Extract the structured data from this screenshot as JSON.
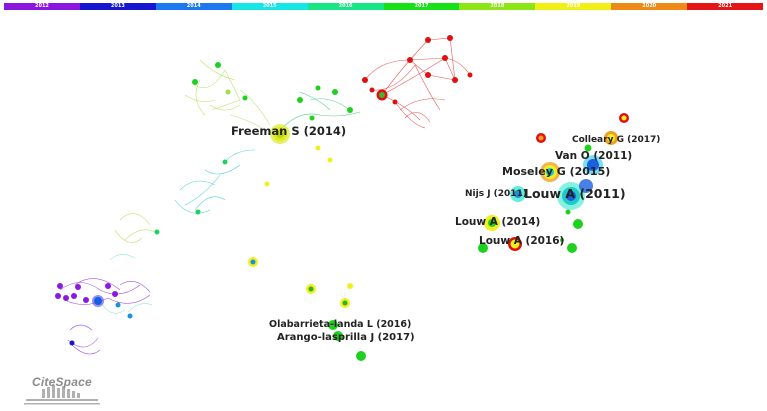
{
  "timeline": {
    "slices": [
      {
        "year": "2012",
        "color": "#8a16e0"
      },
      {
        "year": "2013",
        "color": "#1616d2"
      },
      {
        "year": "2014",
        "color": "#1a78f0"
      },
      {
        "year": "2015",
        "color": "#16e6e6"
      },
      {
        "year": "2016",
        "color": "#16e684"
      },
      {
        "year": "2017",
        "color": "#16e016"
      },
      {
        "year": "2018",
        "color": "#8ce616"
      },
      {
        "year": "2019",
        "color": "#f0f016"
      },
      {
        "year": "2020",
        "color": "#f08a16"
      },
      {
        "year": "2021",
        "color": "#e61616"
      }
    ]
  },
  "labels": {
    "freeman": "Freeman S (2014)",
    "colleary": "Colleary G (2017)",
    "vanoosterwijck": "Van O (2011)",
    "moseley": "Moseley G (2015)",
    "nijs": "Nijs J (2011)",
    "louw2011": "Louw A (2011)",
    "louw2014": "Louw A (2014)",
    "louw2016": "Louw A (2016)",
    "olabarrieta": "Olabarrieta-landa L (2016)",
    "arango": "Arango-lasprilla J (2017)"
  },
  "logo": {
    "text": "CiteSpace"
  }
}
